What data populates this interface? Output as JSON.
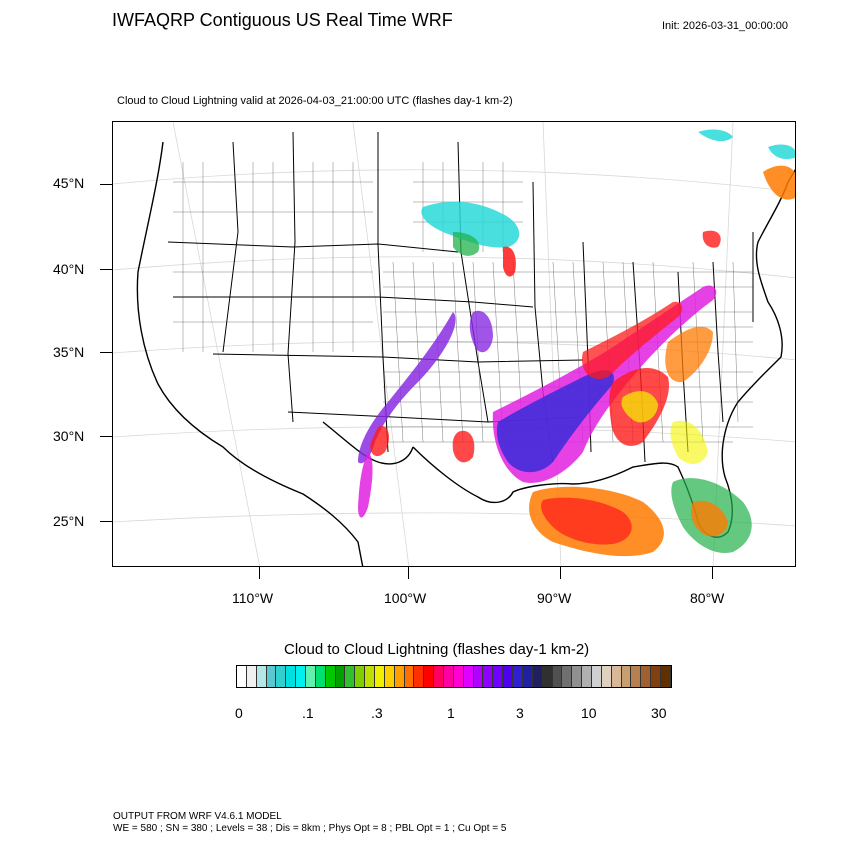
{
  "header": {
    "title": "IWFAQRP Contiguous US Real Time WRF",
    "init": "Init: 2026-03-31_00:00:00",
    "subtitle": "Cloud to Cloud Lightning valid at 2026-04-03_21:00:00 UTC   (flashes day-1 km-2)"
  },
  "map": {
    "lat_labels": [
      "45°N",
      "40°N",
      "35°N",
      "30°N",
      "25°N"
    ],
    "lon_labels": [
      "110°W",
      "100°W",
      "90°W",
      "80°W"
    ],
    "colors": {
      "cyan": "#2ad9d9",
      "green": "#22b14c",
      "yellow": "#f5f500",
      "orange": "#ff7a00",
      "red": "#ff1a1a",
      "magenta": "#e020e0",
      "purple": "#8a2be2",
      "blue": "#3a2bd9"
    }
  },
  "colorbar": {
    "title": "Cloud to Cloud Lightning  (flashes day-1 km-2)",
    "labels": [
      "0",
      ".1",
      ".3",
      "1",
      "3",
      "10",
      "30"
    ],
    "colors": [
      "#ffffff",
      "#f0f0f0",
      "#b4e6e6",
      "#5ac8d0",
      "#30d0d0",
      "#00e0e0",
      "#00f0f0",
      "#60f0b0",
      "#00e070",
      "#00c800",
      "#00a000",
      "#30c030",
      "#80d000",
      "#c0e000",
      "#f0f000",
      "#ffd000",
      "#ffa000",
      "#ff7000",
      "#ff3000",
      "#ff0000",
      "#ff0060",
      "#ff00a0",
      "#ff00d0",
      "#e000ff",
      "#b000ff",
      "#9000ff",
      "#7000ff",
      "#5000f0",
      "#3020d0",
      "#2020a0",
      "#202060",
      "#303030",
      "#505050",
      "#707070",
      "#909090",
      "#b0b0b0",
      "#d0d0d0",
      "#e0d0c0",
      "#d8b898",
      "#c8a070",
      "#b88050",
      "#a06030",
      "#804010",
      "#603000"
    ]
  },
  "footer": {
    "line1": "OUTPUT FROM WRF V4.6.1 MODEL",
    "line2": "WE = 580 ; SN = 380 ; Levels = 38 ; Dis = 8km ; Phys Opt = 8 ; PBL Opt = 1 ; Cu Opt = 5"
  }
}
